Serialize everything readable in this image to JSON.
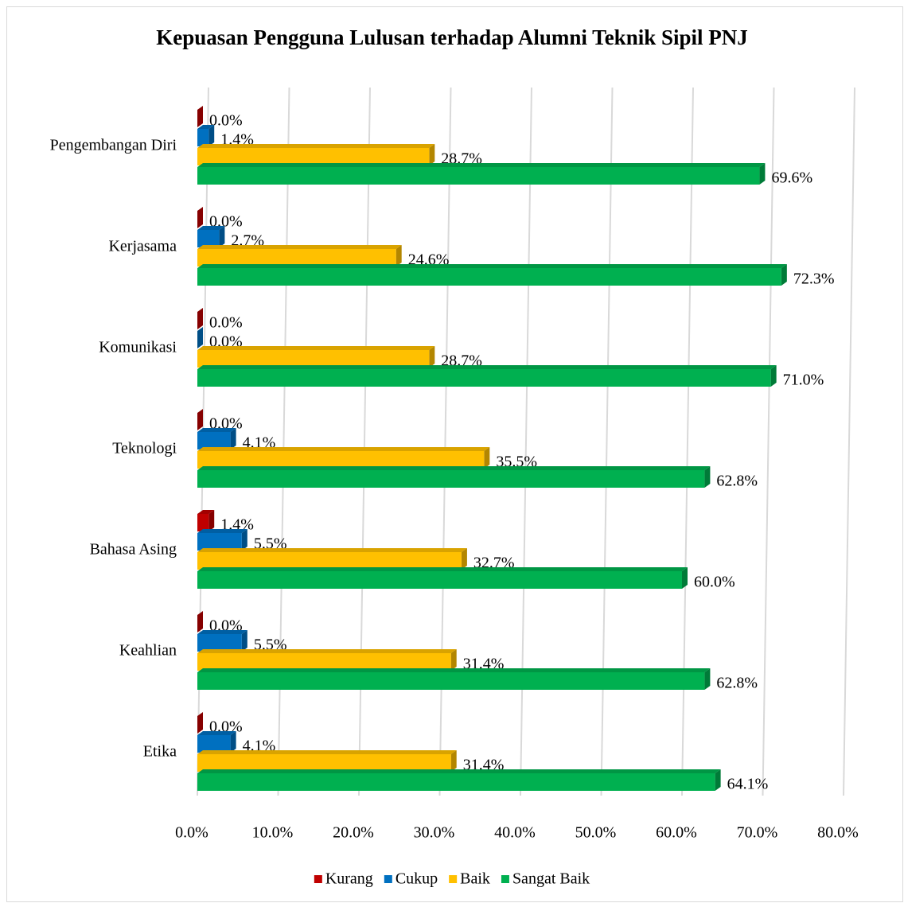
{
  "chart_data": {
    "type": "bar",
    "orientation": "horizontal",
    "title": "Kepuasan Pengguna Lulusan terhadap Alumni Teknik Sipil PNJ",
    "categories": [
      "Pengembangan Diri",
      "Kerjasama",
      "Komunikasi",
      "Teknologi",
      "Bahasa Asing",
      "Keahlian",
      "Etika"
    ],
    "series": [
      {
        "name": "Kurang",
        "color": "#c00000",
        "values": [
          0.0,
          0.0,
          0.0,
          0.0,
          1.4,
          0.0,
          0.0
        ],
        "value_labels": [
          "0.0%",
          "0.0%",
          "0.0%",
          "0.0%",
          "1.4%",
          "0.0%",
          "0.0%"
        ]
      },
      {
        "name": "Cukup",
        "color": "#0070c0",
        "values": [
          1.4,
          2.7,
          0.0,
          4.1,
          5.5,
          5.5,
          4.1
        ],
        "value_labels": [
          "1.4%",
          "2.7%",
          "0.0%",
          "4.1%",
          "5.5%",
          "5.5%",
          "4.1%"
        ]
      },
      {
        "name": "Baik",
        "color": "#ffc000",
        "values": [
          28.7,
          24.6,
          28.7,
          35.5,
          32.7,
          31.4,
          31.4
        ],
        "value_labels": [
          "28.7%",
          "24.6%",
          "28.7%",
          "35.5%",
          "32.7%",
          "31.4%",
          "31.4%"
        ]
      },
      {
        "name": "Sangat Baik",
        "color": "#00b050",
        "values": [
          69.6,
          72.3,
          71.0,
          62.8,
          60.0,
          62.8,
          64.1
        ],
        "value_labels": [
          "69.6%",
          "72.3%",
          "71.0%",
          "62.8%",
          "60.0%",
          "62.8%",
          "64.1%"
        ]
      }
    ],
    "xlim": [
      0,
      80
    ],
    "xticks": [
      {
        "value": 0,
        "label": "0.0%"
      },
      {
        "value": 10,
        "label": "10.0%"
      },
      {
        "value": 20,
        "label": "20.0%"
      },
      {
        "value": 30,
        "label": "30.0%"
      },
      {
        "value": 40,
        "label": "40.0%"
      },
      {
        "value": 50,
        "label": "50.0%"
      },
      {
        "value": 60,
        "label": "60.0%"
      },
      {
        "value": 70,
        "label": "70.0%"
      },
      {
        "value": 80,
        "label": "80.0%"
      }
    ],
    "grid": true,
    "legend": "bottom"
  }
}
